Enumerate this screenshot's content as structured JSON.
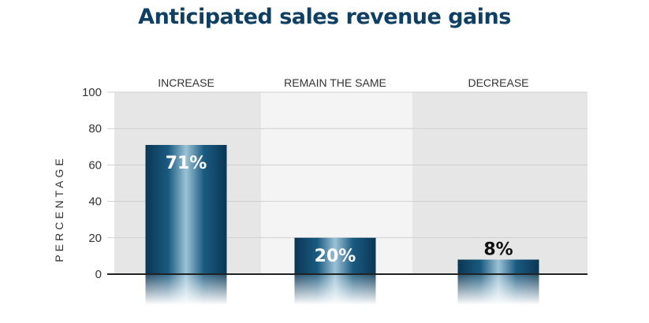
{
  "chart_data": {
    "type": "bar",
    "title": "Anticipated sales revenue gains",
    "categories": [
      "INCREASE",
      "REMAIN THE SAME",
      "DECREASE"
    ],
    "values": [
      71,
      20,
      8
    ],
    "data_labels": [
      "71%",
      "20%",
      "8%"
    ],
    "xlabel": "",
    "ylabel": "PERCENTAGE",
    "ylim": [
      0,
      100
    ],
    "yticks": [
      0,
      20,
      40,
      60,
      80,
      100
    ],
    "category_label_position": "top",
    "grid": true
  },
  "colors": {
    "title": "#0f4063",
    "bar_dark": "#0b3654",
    "bar_mid": "#1a5a80",
    "bar_light": "#9bc2d6",
    "band_dark": "#e6e6e6",
    "band_light": "#f4f4f4",
    "grid": "#cfcfcf",
    "axis": "#222222",
    "label_inside": "#ffffff",
    "label_outside": "#111111"
  }
}
